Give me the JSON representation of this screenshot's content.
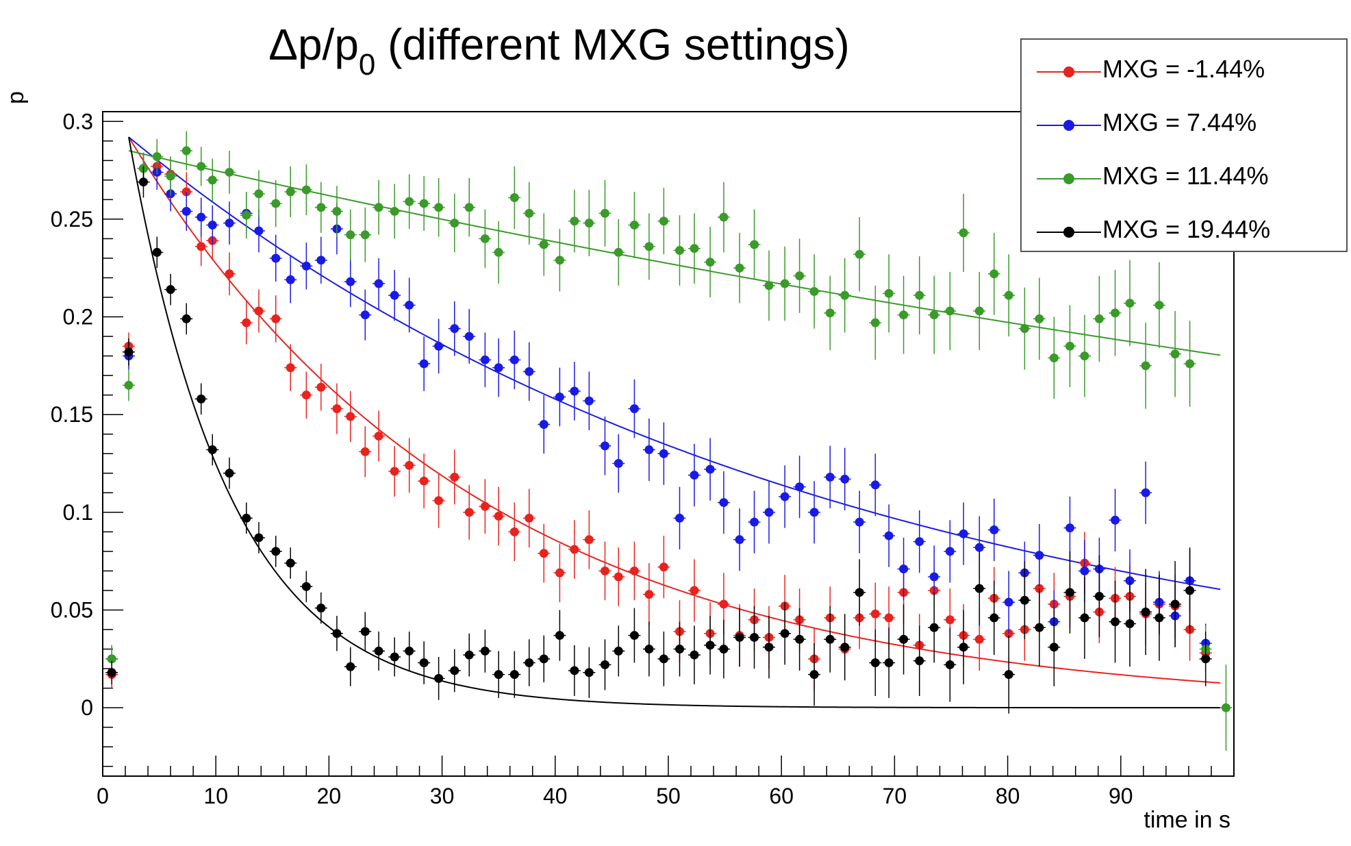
{
  "chart_data": {
    "type": "scatter",
    "title_main": "Δp/p",
    "title_sub": "0",
    "title_rest": " (different MXG settings)",
    "xlabel": "time in s",
    "ylabel": "p",
    "xlim": [
      0,
      100
    ],
    "ylim": [
      -0.035,
      0.305
    ],
    "x_ticks": [
      0,
      10,
      20,
      30,
      40,
      50,
      60,
      70,
      80,
      90
    ],
    "x_tick_labels": [
      "0",
      "10",
      "20",
      "30",
      "40",
      "50",
      "60",
      "70",
      "80",
      "90"
    ],
    "y_ticks": [
      0,
      0.05,
      0.1,
      0.15,
      0.2,
      0.25,
      0.3
    ],
    "y_tick_labels": [
      "0",
      "0.05",
      "0.1",
      "0.15",
      "0.2",
      "0.25",
      "0.3"
    ],
    "legend_position": "top-right",
    "series": [
      {
        "name": "MXG = -1.44%",
        "color": "#e8231e",
        "fit": {
          "model": "exp",
          "a": 0.292,
          "t0": 2.3,
          "k": 0.0325,
          "x_end": 99
        },
        "x": [
          0.8,
          2.3,
          3.6,
          4.8,
          6.0,
          7.4,
          8.7,
          9.7,
          11.2,
          12.7,
          13.8,
          15.3,
          16.6,
          18.0,
          19.3,
          20.7,
          21.9,
          23.2,
          24.4,
          25.8,
          27.1,
          28.4,
          29.7,
          31.1,
          32.4,
          33.8,
          35.0,
          36.4,
          37.7,
          39.0,
          40.4,
          41.7,
          43.0,
          44.4,
          45.6,
          47.0,
          48.3,
          49.6,
          51.0,
          52.3,
          53.7,
          54.9,
          56.3,
          57.6,
          58.9,
          60.3,
          61.6,
          62.9,
          64.3,
          65.6,
          66.9,
          68.3,
          69.5,
          70.8,
          72.2,
          73.5,
          74.9,
          76.1,
          77.5,
          78.8,
          80.1,
          81.5,
          82.8,
          84.1,
          85.5,
          86.8,
          88.1,
          89.5,
          90.8,
          92.2,
          93.4,
          94.8,
          96.1,
          97.5
        ],
        "y": [
          0.017,
          0.185,
          0.276,
          0.277,
          0.273,
          0.264,
          0.236,
          0.239,
          0.222,
          0.197,
          0.203,
          0.199,
          0.174,
          0.16,
          0.164,
          0.153,
          0.149,
          0.131,
          0.139,
          0.121,
          0.124,
          0.116,
          0.106,
          0.118,
          0.1,
          0.103,
          0.098,
          0.09,
          0.097,
          0.079,
          0.069,
          0.081,
          0.086,
          0.07,
          0.067,
          0.07,
          0.058,
          0.072,
          0.039,
          0.06,
          0.038,
          0.053,
          0.037,
          0.045,
          0.036,
          0.052,
          0.045,
          0.025,
          0.046,
          0.03,
          0.046,
          0.048,
          0.046,
          0.059,
          0.032,
          0.06,
          0.045,
          0.037,
          0.035,
          0.056,
          0.038,
          0.04,
          0.061,
          0.053,
          0.057,
          0.074,
          0.049,
          0.056,
          0.057,
          0.048,
          0.053,
          0.052,
          0.04,
          0.028
        ],
        "yerr": [
          0.007,
          0.007,
          0.008,
          0.009,
          0.009,
          0.01,
          0.01,
          0.01,
          0.011,
          0.011,
          0.011,
          0.012,
          0.012,
          0.012,
          0.012,
          0.013,
          0.013,
          0.013,
          0.013,
          0.013,
          0.014,
          0.014,
          0.014,
          0.014,
          0.014,
          0.014,
          0.015,
          0.015,
          0.015,
          0.015,
          0.015,
          0.015,
          0.015,
          0.015,
          0.015,
          0.015,
          0.016,
          0.016,
          0.016,
          0.016,
          0.016,
          0.016,
          0.016,
          0.016,
          0.016,
          0.016,
          0.016,
          0.016,
          0.016,
          0.016,
          0.016,
          0.016,
          0.016,
          0.016,
          0.016,
          0.016,
          0.016,
          0.016,
          0.016,
          0.016,
          0.016,
          0.016,
          0.016,
          0.016,
          0.016,
          0.016,
          0.016,
          0.016,
          0.016,
          0.016,
          0.016,
          0.016,
          0.016,
          0.01
        ]
      },
      {
        "name": "MXG = 7.44%",
        "color": "#1a1ae6",
        "fit": {
          "model": "exp",
          "a": 0.292,
          "t0": 2.3,
          "k": 0.0163,
          "x_end": 99
        },
        "x": [
          0.8,
          2.3,
          3.6,
          4.8,
          6.0,
          7.4,
          8.7,
          9.7,
          11.2,
          12.7,
          13.8,
          15.3,
          16.6,
          18.0,
          19.3,
          20.7,
          21.9,
          23.2,
          24.4,
          25.8,
          27.1,
          28.4,
          29.7,
          31.1,
          32.4,
          33.8,
          35.0,
          36.4,
          37.7,
          39.0,
          40.4,
          41.7,
          43.0,
          44.4,
          45.6,
          47.0,
          48.3,
          49.6,
          51.0,
          52.3,
          53.7,
          54.9,
          56.3,
          57.6,
          58.9,
          60.3,
          61.6,
          62.9,
          64.3,
          65.6,
          66.9,
          68.3,
          69.5,
          70.8,
          72.2,
          73.5,
          74.9,
          76.1,
          77.5,
          78.8,
          80.1,
          81.5,
          82.8,
          84.1,
          85.5,
          86.8,
          88.1,
          89.5,
          90.8,
          92.2,
          93.4,
          94.8,
          96.1,
          97.5
        ],
        "y": [
          0.025,
          0.18,
          0.276,
          0.274,
          0.263,
          0.254,
          0.251,
          0.247,
          0.248,
          0.253,
          0.244,
          0.23,
          0.219,
          0.226,
          0.229,
          0.245,
          0.218,
          0.201,
          0.217,
          0.211,
          0.206,
          0.176,
          0.185,
          0.194,
          0.19,
          0.178,
          0.174,
          0.178,
          0.172,
          0.145,
          0.159,
          0.162,
          0.157,
          0.134,
          0.125,
          0.153,
          0.132,
          0.13,
          0.097,
          0.119,
          0.122,
          0.105,
          0.086,
          0.095,
          0.1,
          0.108,
          0.113,
          0.1,
          0.118,
          0.117,
          0.095,
          0.114,
          0.088,
          0.071,
          0.085,
          0.067,
          0.08,
          0.089,
          0.082,
          0.091,
          0.054,
          0.069,
          0.078,
          0.044,
          0.092,
          0.07,
          0.071,
          0.096,
          0.065,
          0.11,
          0.054,
          0.047,
          0.065,
          0.033
        ],
        "yerr": [
          0.007,
          0.007,
          0.008,
          0.009,
          0.009,
          0.01,
          0.01,
          0.01,
          0.011,
          0.011,
          0.011,
          0.012,
          0.012,
          0.012,
          0.012,
          0.013,
          0.013,
          0.013,
          0.013,
          0.013,
          0.014,
          0.014,
          0.014,
          0.014,
          0.014,
          0.014,
          0.015,
          0.015,
          0.015,
          0.015,
          0.015,
          0.015,
          0.015,
          0.015,
          0.015,
          0.015,
          0.016,
          0.016,
          0.016,
          0.016,
          0.016,
          0.016,
          0.016,
          0.016,
          0.016,
          0.016,
          0.016,
          0.016,
          0.016,
          0.016,
          0.016,
          0.016,
          0.016,
          0.016,
          0.016,
          0.016,
          0.016,
          0.016,
          0.016,
          0.016,
          0.016,
          0.016,
          0.016,
          0.016,
          0.016,
          0.016,
          0.016,
          0.016,
          0.016,
          0.016,
          0.016,
          0.016,
          0.016,
          0.01
        ]
      },
      {
        "name": "MXG = 11.44%",
        "color": "#3a9a2a",
        "fit": {
          "model": "exp",
          "a": 0.285,
          "t0": 2.3,
          "k": 0.00474,
          "x_end": 99
        },
        "x": [
          0.8,
          2.3,
          3.6,
          4.8,
          6.0,
          7.4,
          8.7,
          9.7,
          11.2,
          12.7,
          13.8,
          15.3,
          16.6,
          18.0,
          19.3,
          20.7,
          21.9,
          23.2,
          24.4,
          25.8,
          27.1,
          28.4,
          29.7,
          31.1,
          32.4,
          33.8,
          35.0,
          36.4,
          37.7,
          39.0,
          40.4,
          41.7,
          43.0,
          44.4,
          45.6,
          47.0,
          48.3,
          49.6,
          51.0,
          52.3,
          53.7,
          54.9,
          56.3,
          57.6,
          58.9,
          60.3,
          61.6,
          62.9,
          64.3,
          65.6,
          66.9,
          68.3,
          69.5,
          70.8,
          72.2,
          73.5,
          74.9,
          76.1,
          77.5,
          78.8,
          80.1,
          81.5,
          82.8,
          84.1,
          85.5,
          86.8,
          88.1,
          89.5,
          90.8,
          92.2,
          93.4,
          94.8,
          96.1,
          97.5,
          99.3
        ],
        "y": [
          0.025,
          0.165,
          0.276,
          0.282,
          0.272,
          0.285,
          0.277,
          0.27,
          0.274,
          0.252,
          0.263,
          0.258,
          0.264,
          0.265,
          0.256,
          0.254,
          0.242,
          0.242,
          0.256,
          0.254,
          0.259,
          0.258,
          0.256,
          0.248,
          0.256,
          0.24,
          0.233,
          0.261,
          0.253,
          0.237,
          0.229,
          0.249,
          0.248,
          0.253,
          0.233,
          0.247,
          0.236,
          0.249,
          0.234,
          0.235,
          0.228,
          0.251,
          0.225,
          0.237,
          0.216,
          0.217,
          0.221,
          0.213,
          0.202,
          0.211,
          0.232,
          0.197,
          0.212,
          0.201,
          0.211,
          0.201,
          0.203,
          0.243,
          0.203,
          0.222,
          0.211,
          0.194,
          0.199,
          0.179,
          0.185,
          0.18,
          0.199,
          0.202,
          0.207,
          0.175,
          0.206,
          0.181,
          0.176,
          0.03,
          0.0
        ],
        "yerr": [
          0.007,
          0.008,
          0.008,
          0.009,
          0.01,
          0.01,
          0.01,
          0.011,
          0.011,
          0.012,
          0.012,
          0.012,
          0.013,
          0.013,
          0.013,
          0.013,
          0.013,
          0.014,
          0.014,
          0.014,
          0.014,
          0.014,
          0.015,
          0.015,
          0.015,
          0.015,
          0.016,
          0.016,
          0.016,
          0.016,
          0.016,
          0.016,
          0.017,
          0.017,
          0.017,
          0.017,
          0.017,
          0.017,
          0.018,
          0.018,
          0.018,
          0.018,
          0.018,
          0.018,
          0.018,
          0.019,
          0.019,
          0.019,
          0.019,
          0.019,
          0.019,
          0.019,
          0.02,
          0.02,
          0.02,
          0.02,
          0.02,
          0.02,
          0.02,
          0.021,
          0.021,
          0.021,
          0.021,
          0.021,
          0.021,
          0.021,
          0.022,
          0.022,
          0.022,
          0.022,
          0.022,
          0.022,
          0.022,
          0.012,
          0.022
        ]
      },
      {
        "name": "MXG = 19.44%",
        "color": "#000000",
        "fit": {
          "model": "exp",
          "a": 0.292,
          "t0": 2.3,
          "k": 0.1105,
          "x_end": 99
        },
        "x": [
          0.8,
          2.3,
          3.6,
          4.8,
          6.0,
          7.4,
          8.7,
          9.7,
          11.2,
          12.7,
          13.8,
          15.3,
          16.6,
          18.0,
          19.3,
          20.7,
          21.9,
          23.2,
          24.4,
          25.8,
          27.1,
          28.4,
          29.7,
          31.1,
          32.4,
          33.8,
          35.0,
          36.4,
          37.7,
          39.0,
          40.4,
          41.7,
          43.0,
          44.4,
          45.6,
          47.0,
          48.3,
          49.6,
          51.0,
          52.3,
          53.7,
          54.9,
          56.3,
          57.6,
          58.9,
          60.3,
          61.6,
          62.9,
          64.3,
          65.6,
          66.9,
          68.3,
          69.5,
          70.8,
          72.2,
          73.5,
          74.9,
          76.1,
          77.5,
          78.8,
          80.1,
          81.5,
          82.8,
          84.1,
          85.5,
          86.8,
          88.1,
          89.5,
          90.8,
          92.2,
          93.4,
          94.8,
          96.1,
          97.5
        ],
        "y": [
          0.018,
          0.182,
          0.269,
          0.233,
          0.214,
          0.199,
          0.158,
          0.132,
          0.12,
          0.097,
          0.087,
          0.08,
          0.074,
          0.062,
          0.051,
          0.038,
          0.021,
          0.039,
          0.029,
          0.026,
          0.029,
          0.023,
          0.015,
          0.019,
          0.027,
          0.029,
          0.017,
          0.017,
          0.023,
          0.025,
          0.037,
          0.019,
          0.018,
          0.022,
          0.029,
          0.037,
          0.03,
          0.025,
          0.03,
          0.027,
          0.032,
          0.03,
          0.036,
          0.036,
          0.031,
          0.038,
          0.035,
          0.017,
          0.035,
          0.031,
          0.059,
          0.023,
          0.023,
          0.035,
          0.024,
          0.041,
          0.022,
          0.031,
          0.061,
          0.046,
          0.017,
          0.055,
          0.041,
          0.031,
          0.059,
          0.046,
          0.057,
          0.044,
          0.043,
          0.049,
          0.046,
          0.053,
          0.06,
          0.025
        ],
        "yerr": [
          0.006,
          0.007,
          0.008,
          0.008,
          0.008,
          0.008,
          0.008,
          0.008,
          0.008,
          0.008,
          0.008,
          0.008,
          0.008,
          0.008,
          0.008,
          0.009,
          0.01,
          0.01,
          0.01,
          0.01,
          0.01,
          0.011,
          0.011,
          0.011,
          0.011,
          0.011,
          0.012,
          0.012,
          0.012,
          0.012,
          0.013,
          0.013,
          0.013,
          0.013,
          0.013,
          0.014,
          0.014,
          0.014,
          0.014,
          0.015,
          0.015,
          0.015,
          0.015,
          0.016,
          0.016,
          0.016,
          0.016,
          0.016,
          0.017,
          0.017,
          0.017,
          0.017,
          0.018,
          0.018,
          0.018,
          0.018,
          0.019,
          0.019,
          0.019,
          0.019,
          0.02,
          0.02,
          0.02,
          0.02,
          0.021,
          0.021,
          0.021,
          0.021,
          0.022,
          0.022,
          0.022,
          0.022,
          0.022,
          0.014
        ]
      }
    ]
  }
}
